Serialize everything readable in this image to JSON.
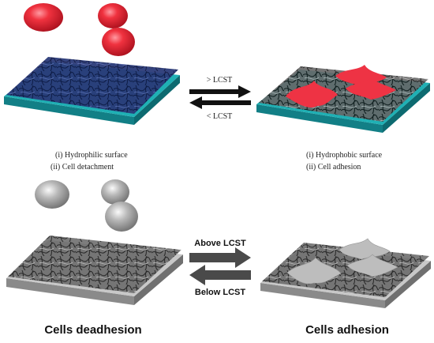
{
  "top_panel": {
    "arrow_labels": [
      "> LCST",
      "< LCST"
    ],
    "left_caption": [
      "(i) Hydrophilic surface",
      "(ii) Cell detachment"
    ],
    "right_caption": [
      "(i) Hydrophobic surface",
      "(ii) Cell adhesion"
    ]
  },
  "bottom_panel": {
    "arrow_labels": [
      "Above LCST",
      "Below LCST"
    ],
    "left_caption": "Cells deadhesion",
    "right_caption": "Cells adhesion"
  }
}
